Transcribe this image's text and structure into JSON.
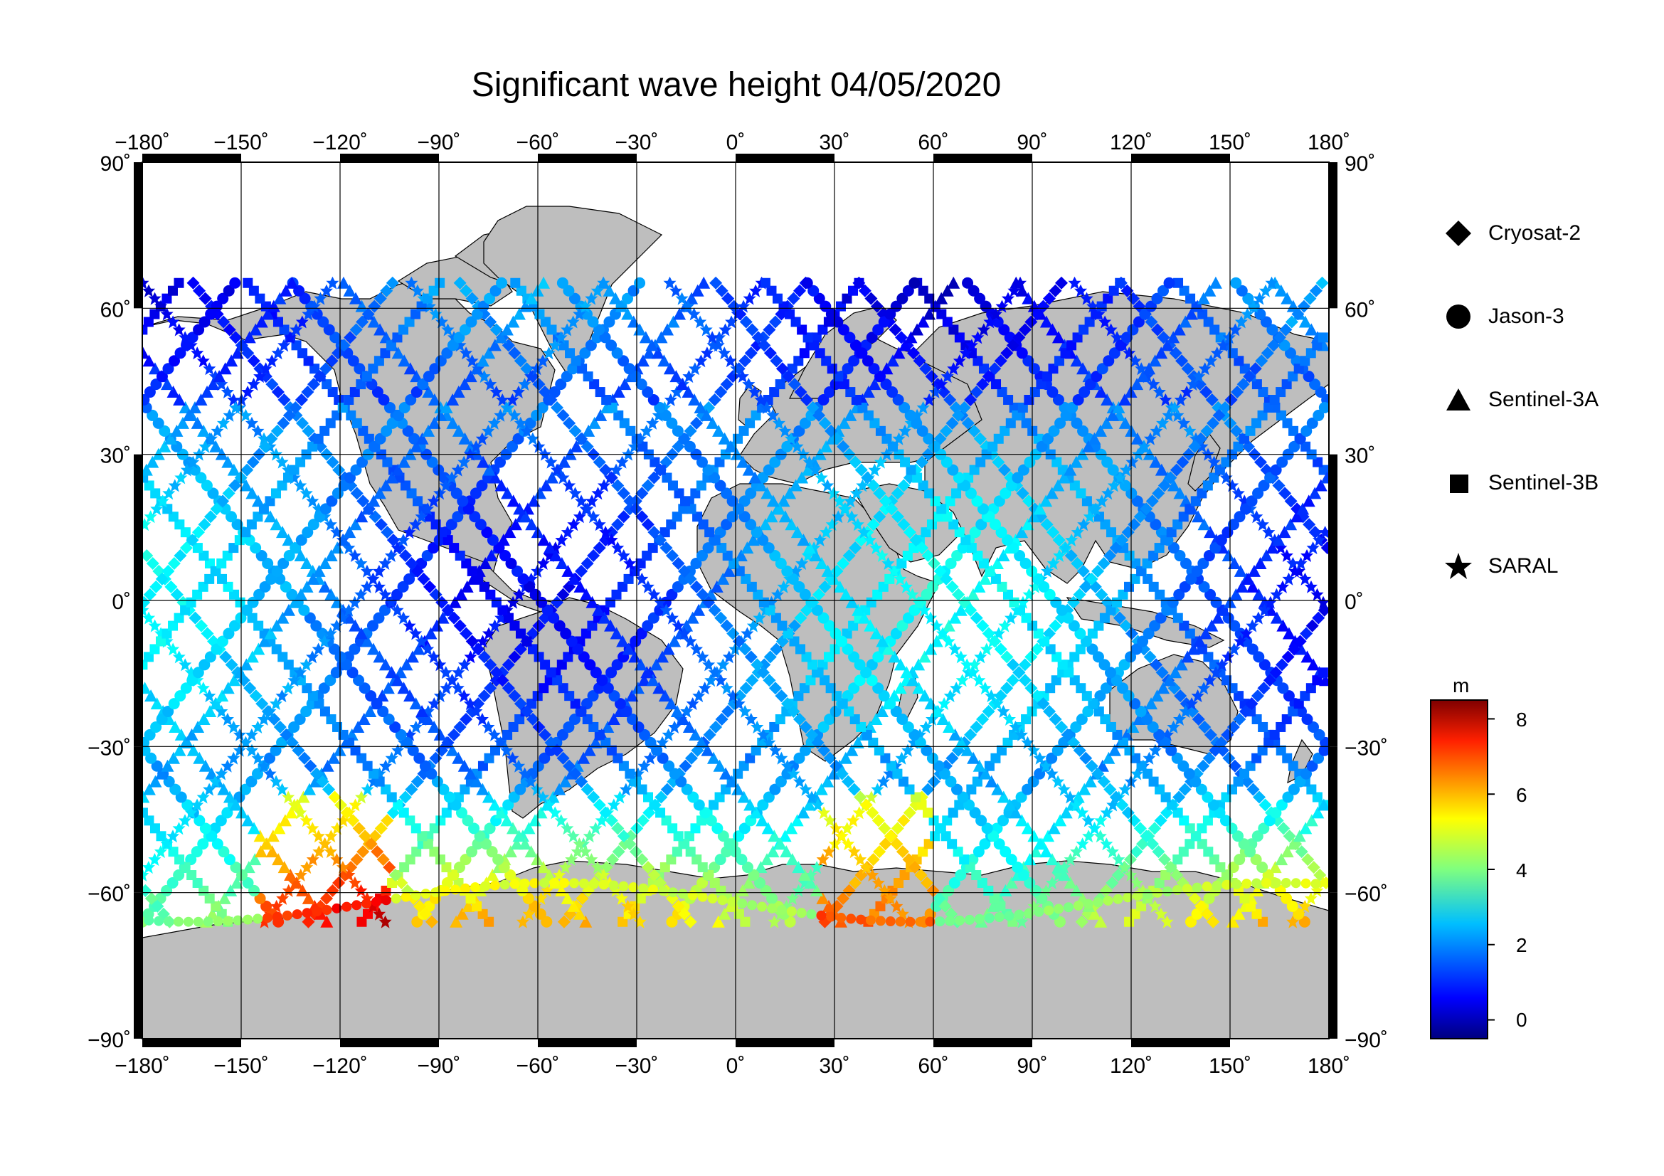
{
  "title": "Significant wave height 04/05/2020",
  "map": {
    "lon_ticks": [
      "−180˚",
      "−150˚",
      "−120˚",
      "−90˚",
      "−60˚",
      "−30˚",
      "0˚",
      "30˚",
      "60˚",
      "90˚",
      "120˚",
      "150˚",
      "180˚"
    ],
    "lat_ticks_left": [
      "90˚",
      "60˚",
      "30˚",
      "0˚",
      "−30˚",
      "−60˚",
      "−90˚"
    ],
    "lat_ticks_right": [
      "90˚",
      "60˚",
      "30˚",
      "0˚",
      "−30˚",
      "−60˚",
      "−90˚"
    ],
    "lon_range": [
      -180,
      180
    ],
    "lat_range": [
      -90,
      90
    ],
    "land_color": "#bebebe",
    "ocean_color": "#ffffff",
    "grid": true
  },
  "legend": {
    "items": [
      {
        "label": "Cryosat-2",
        "symbol": "diamond-icon"
      },
      {
        "label": "Jason-3",
        "symbol": "circle-icon"
      },
      {
        "label": "Sentinel-3A",
        "symbol": "triangle-icon"
      },
      {
        "label": "Sentinel-3B",
        "symbol": "square-icon"
      },
      {
        "label": "SARAL",
        "symbol": "star-icon"
      }
    ]
  },
  "colorbar": {
    "unit": "m",
    "range": [
      -0.5,
      8.5
    ],
    "ticks": [
      "8",
      "6",
      "4",
      "2",
      "0"
    ],
    "colormap": "jet"
  }
}
